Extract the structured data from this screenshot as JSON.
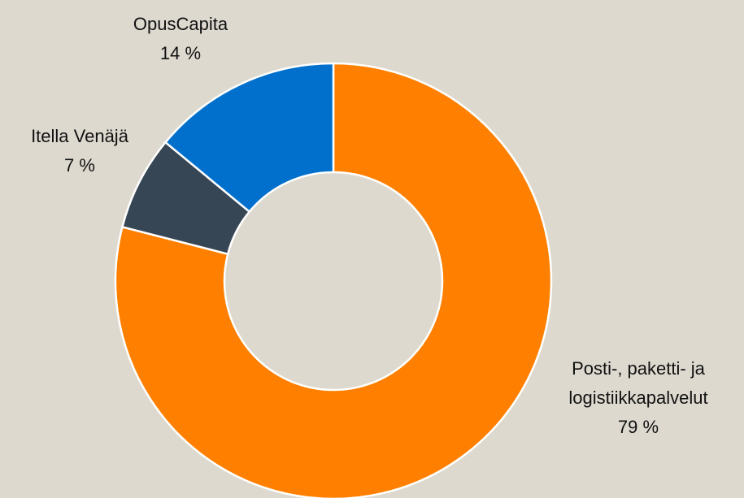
{
  "chart_data": {
    "type": "donut",
    "categories": [
      "Posti-, paketti- ja logistiikkapalvelut",
      "Itella Venäjä",
      "OpusCapita"
    ],
    "values": [
      79,
      7,
      14
    ],
    "value_labels": [
      "79 %",
      "7 %",
      "14 %"
    ],
    "colors": [
      "#ff8000",
      "#374654",
      "#0070cc"
    ]
  }
}
